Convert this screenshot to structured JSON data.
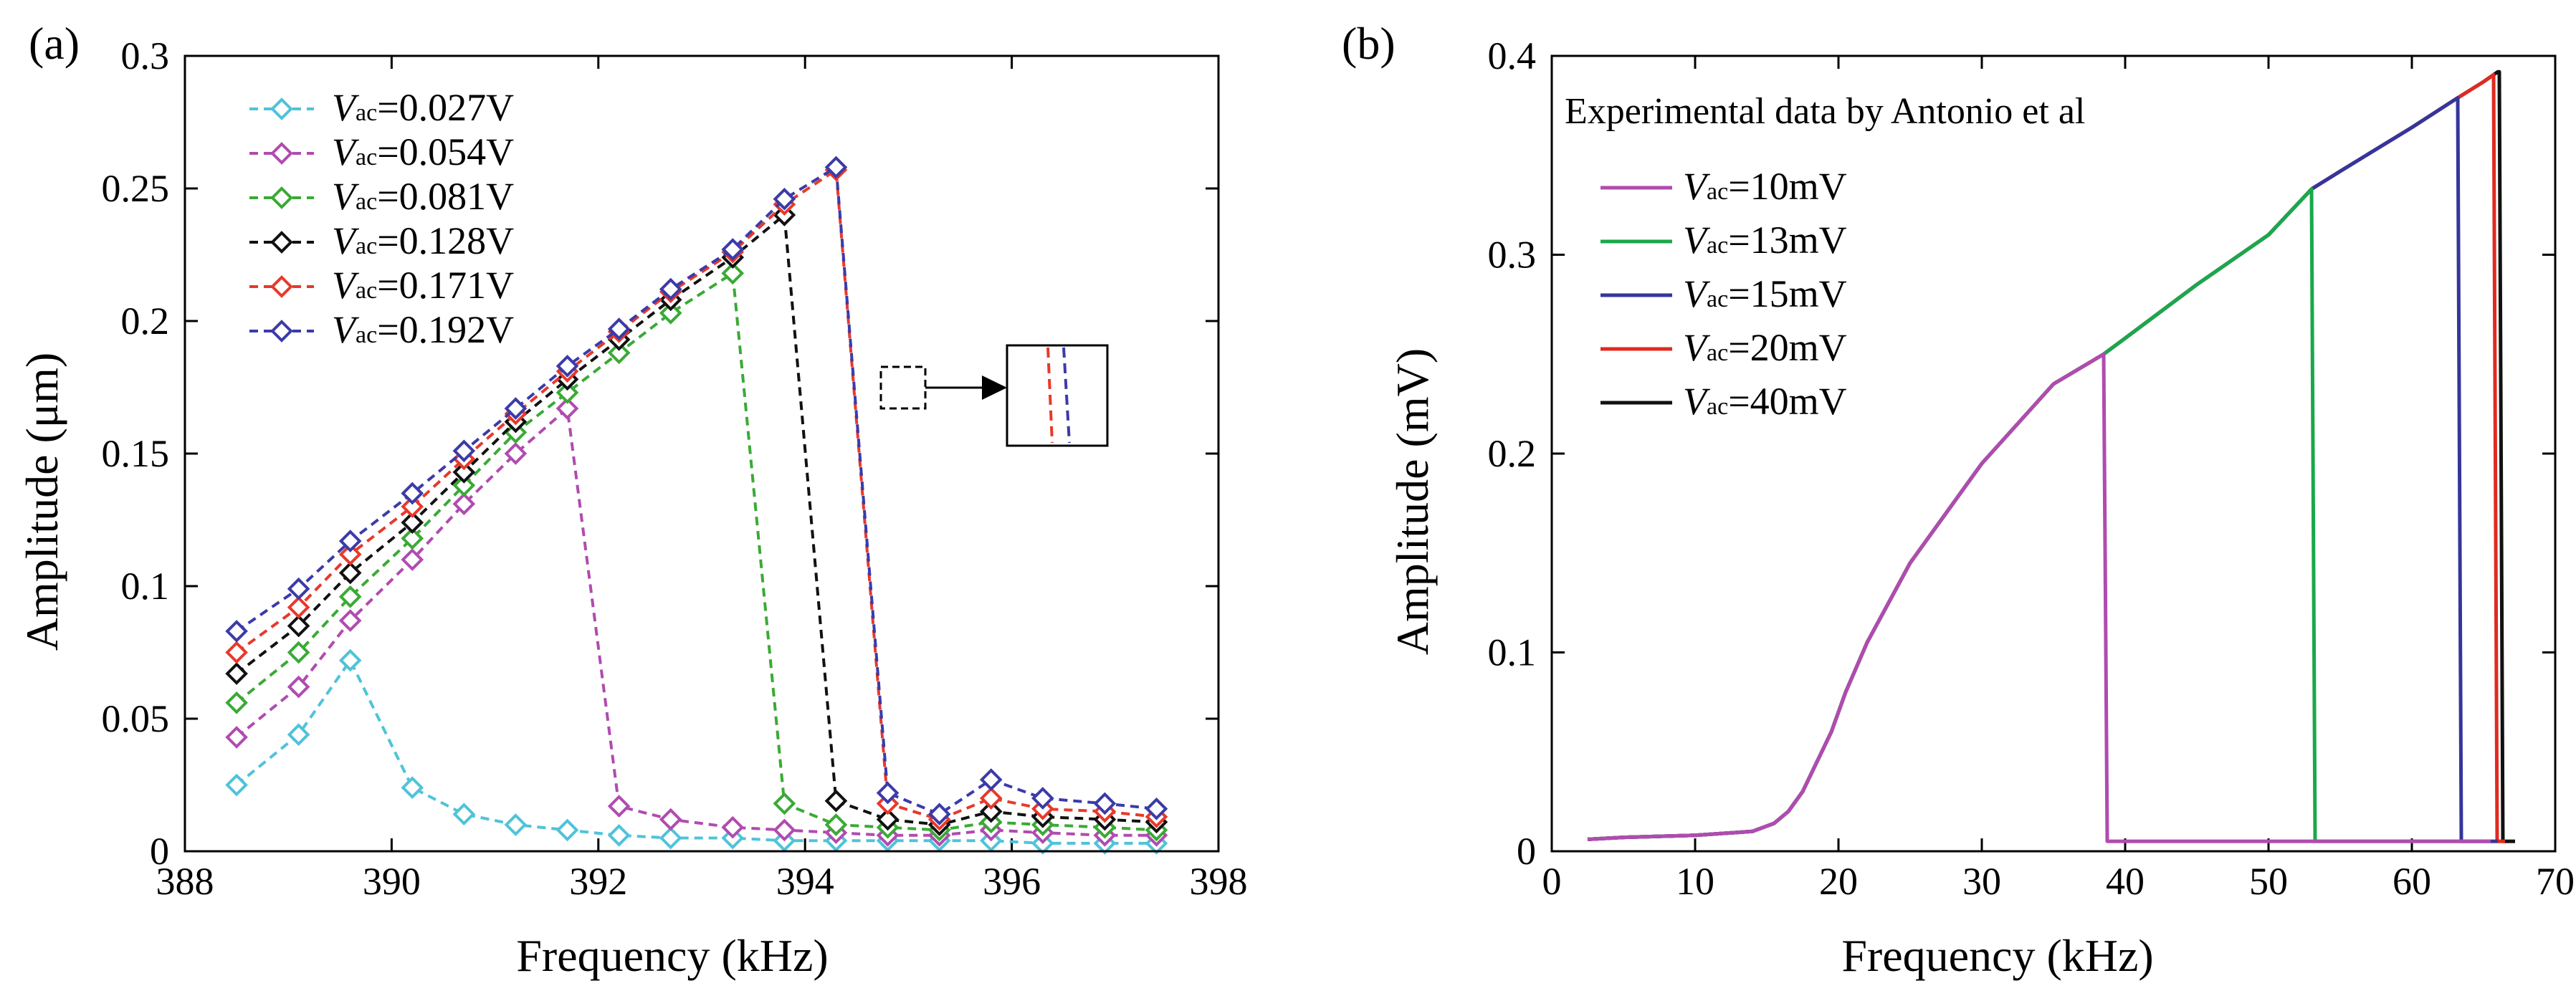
{
  "chart_data": [
    {
      "panel": "(a)",
      "type": "line",
      "marker": "diamond",
      "linestyle": "dashed",
      "xlabel": "Frequency (kHz)",
      "ylabel": "Amplitude (μm)",
      "xlim": [
        388,
        398
      ],
      "ylim": [
        0,
        0.3
      ],
      "xticks": [
        "388",
        "390",
        "392",
        "394",
        "396",
        "398"
      ],
      "xtick_values": [
        388,
        390,
        392,
        394,
        396,
        398
      ],
      "yticks": [
        "0",
        "0.05",
        "0.1",
        "0.15",
        "0.2",
        "0.25",
        "0.3"
      ],
      "ytick_values": [
        0,
        0.05,
        0.1,
        0.15,
        0.2,
        0.25,
        0.3
      ],
      "legend_position": "top-left",
      "x": [
        388.5,
        389.1,
        389.6,
        390.2,
        390.7,
        391.2,
        391.7,
        392.2,
        392.7,
        393.3,
        393.8,
        394.3,
        394.8,
        395.3,
        395.8,
        396.3,
        396.9,
        397.4
      ],
      "series": [
        {
          "name": "Vac=0.027V",
          "label_v": "V",
          "label_sub": "ac",
          "label_val": "=0.027V",
          "color": "#4fc3d9",
          "values": [
            0.025,
            0.044,
            0.072,
            0.024,
            0.014,
            0.01,
            0.008,
            0.006,
            0.005,
            0.005,
            0.004,
            0.004,
            0.004,
            0.004,
            0.004,
            0.003,
            0.003,
            0.003
          ]
        },
        {
          "name": "Vac=0.054V",
          "label_v": "V",
          "label_sub": "ac",
          "label_val": "=0.054V",
          "color": "#b04bb0",
          "values": [
            0.043,
            0.062,
            0.087,
            0.11,
            0.131,
            0.15,
            0.167,
            0.017,
            0.012,
            0.009,
            0.008,
            0.007,
            0.006,
            0.006,
            0.008,
            0.007,
            0.006,
            0.006
          ]
        },
        {
          "name": "Vac=0.081V",
          "label_v": "V",
          "label_sub": "ac",
          "label_val": "=0.081V",
          "color": "#3aaa35",
          "values": [
            0.056,
            0.075,
            0.096,
            0.118,
            0.138,
            0.158,
            0.173,
            0.188,
            0.203,
            0.218,
            0.018,
            0.01,
            0.009,
            0.008,
            0.011,
            0.01,
            0.009,
            0.008
          ]
        },
        {
          "name": "Vac=0.128V",
          "label_v": "V",
          "label_sub": "ac",
          "label_val": "=0.128V",
          "color": "#111111",
          "values": [
            0.067,
            0.085,
            0.105,
            0.124,
            0.143,
            0.162,
            0.178,
            0.193,
            0.208,
            0.224,
            0.24,
            0.019,
            0.012,
            0.01,
            0.015,
            0.013,
            0.012,
            0.011
          ]
        },
        {
          "name": "Vac=0.171V",
          "label_v": "V",
          "label_sub": "ac",
          "label_val": "=0.171V",
          "color": "#e8392a",
          "values": [
            0.075,
            0.092,
            0.112,
            0.13,
            0.148,
            0.165,
            0.181,
            0.196,
            0.211,
            0.226,
            0.244,
            0.257,
            0.018,
            0.012,
            0.02,
            0.016,
            0.015,
            0.013
          ]
        },
        {
          "name": "Vac=0.192V",
          "label_v": "V",
          "label_sub": "ac",
          "label_val": "=0.192V",
          "color": "#3b3ba8",
          "values": [
            0.083,
            0.099,
            0.117,
            0.135,
            0.151,
            0.167,
            0.183,
            0.197,
            0.212,
            0.227,
            0.246,
            0.258,
            0.022,
            0.014,
            0.027,
            0.02,
            0.018,
            0.016
          ]
        }
      ]
    },
    {
      "panel": "(b)",
      "type": "line",
      "xlabel": "Frequency (kHz)",
      "ylabel": "Amplitude (mV)",
      "xlim": [
        0,
        70
      ],
      "ylim": [
        0,
        0.4
      ],
      "xticks": [
        "0",
        "10",
        "20",
        "30",
        "40",
        "50",
        "60",
        "70"
      ],
      "xtick_values": [
        0,
        10,
        20,
        30,
        40,
        50,
        60,
        70
      ],
      "yticks": [
        "0",
        "0.1",
        "0.2",
        "0.3",
        "0.4"
      ],
      "ytick_values": [
        0,
        0.1,
        0.2,
        0.3,
        0.4
      ],
      "annotation": "Experimental data by Antonio et al",
      "legend_position": "top-left",
      "backbone": {
        "x": [
          2.5,
          5,
          10,
          14,
          15.5,
          16.5,
          17.5,
          18.5,
          19.5,
          20.5,
          22,
          25,
          30,
          35,
          38.5,
          40,
          45,
          50,
          53,
          55,
          60,
          63,
          65,
          66
        ],
        "y": [
          0.006,
          0.007,
          0.008,
          0.01,
          0.014,
          0.02,
          0.03,
          0.045,
          0.06,
          0.08,
          0.105,
          0.145,
          0.195,
          0.235,
          0.25,
          0.258,
          0.285,
          0.31,
          0.333,
          0.342,
          0.364,
          0.378,
          0.387,
          0.392
        ]
      },
      "series": [
        {
          "name": "Vac=10mV",
          "label_v": "V",
          "label_sub": "ac",
          "label_val": "=10mV",
          "color": "#b04bb0",
          "jump_x": 38.5,
          "jump_from": 0.25,
          "tail_y": 0.005,
          "end_x": 65.5
        },
        {
          "name": "Vac=13mV",
          "label_v": "V",
          "label_sub": "ac",
          "label_val": "=13mV",
          "color": "#1aa84a",
          "jump_x": 53,
          "jump_from": 0.333,
          "tail_y": 0.005,
          "end_x": 65.5
        },
        {
          "name": "Vac=15mV",
          "label_v": "V",
          "label_sub": "ac",
          "label_val": "=15mV",
          "color": "#35359c",
          "jump_x": 63.2,
          "jump_from": 0.38,
          "tail_y": 0.005,
          "end_x": 66
        },
        {
          "name": "Vac=20mV",
          "label_v": "V",
          "label_sub": "ac",
          "label_val": "=20mV",
          "color": "#e02a20",
          "jump_x": 65.7,
          "jump_from": 0.391,
          "tail_y": 0.005,
          "end_x": 66.5
        },
        {
          "name": "Vac=40mV",
          "label_v": "V",
          "label_sub": "ac",
          "label_val": "=40mV",
          "color": "#111111",
          "jump_x": 66.1,
          "jump_from": 0.392,
          "tail_y": 0.005,
          "end_x": 67.2
        }
      ]
    }
  ]
}
